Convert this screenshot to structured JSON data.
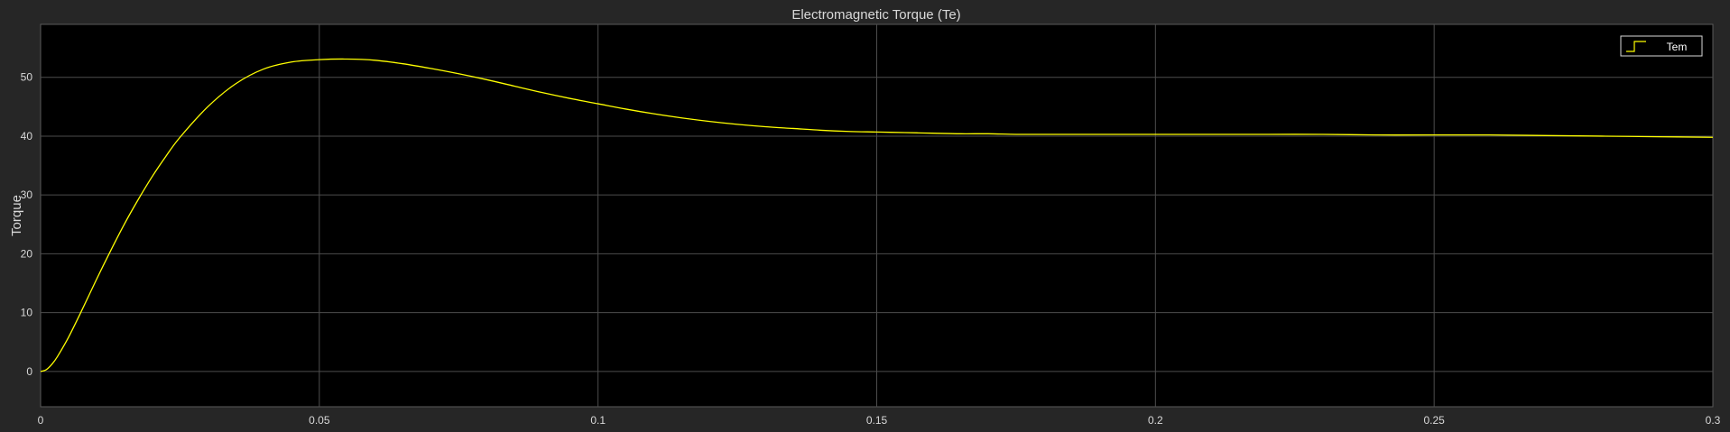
{
  "chart_data": {
    "type": "line",
    "title": "Electromagnetic Torque (Te)",
    "xlabel": "",
    "ylabel": "Torque",
    "xlim": [
      0,
      0.3
    ],
    "ylim": [
      -6,
      59
    ],
    "xticks": [
      0,
      0.05,
      0.1,
      0.15,
      0.2,
      0.25,
      0.3
    ],
    "xtick_labels": [
      "0",
      "0.05",
      "0.1",
      "0.15",
      "0.2",
      "0.25",
      "0.3"
    ],
    "yticks": [
      0,
      10,
      20,
      30,
      40,
      50
    ],
    "ytick_labels": [
      "0",
      "10",
      "20",
      "30",
      "40",
      "50"
    ],
    "grid": true,
    "legend_position": "top-right",
    "colors": {
      "background": "#262626",
      "plot_area": "#000000",
      "grid": "#4d4d4d",
      "line": "#ffff00",
      "text": "#d9d9d9"
    },
    "series": [
      {
        "name": "Tem",
        "x": [
          0,
          0.001,
          0.002,
          0.003,
          0.005,
          0.0075,
          0.01,
          0.0125,
          0.015,
          0.0175,
          0.02,
          0.0225,
          0.025,
          0.03,
          0.035,
          0.04,
          0.045,
          0.05,
          0.055,
          0.06,
          0.065,
          0.07,
          0.075,
          0.08,
          0.085,
          0.09,
          0.095,
          0.1,
          0.105,
          0.11,
          0.115,
          0.12,
          0.125,
          0.13,
          0.135,
          0.14,
          0.145,
          0.15,
          0.155,
          0.16,
          0.165,
          0.17,
          0.175,
          0.18,
          0.19,
          0.2,
          0.21,
          0.22,
          0.23,
          0.24,
          0.25,
          0.26,
          0.27,
          0.28,
          0.29,
          0.3
        ],
        "y": [
          0,
          0.3,
          1.2,
          2.5,
          5.8,
          10.6,
          15.6,
          20.4,
          25.0,
          29.2,
          33.1,
          36.6,
          39.8,
          45.0,
          48.9,
          51.4,
          52.6,
          53.0,
          53.1,
          52.9,
          52.3,
          51.5,
          50.6,
          49.6,
          48.5,
          47.4,
          46.4,
          45.5,
          44.6,
          43.8,
          43.1,
          42.5,
          42.0,
          41.6,
          41.3,
          41.0,
          40.8,
          40.7,
          40.6,
          40.5,
          40.4,
          40.4,
          40.3,
          40.3,
          40.3,
          40.3,
          40.3,
          40.3,
          40.3,
          40.2,
          40.2,
          40.2,
          40.1,
          40.0,
          39.9,
          39.8
        ]
      }
    ]
  }
}
